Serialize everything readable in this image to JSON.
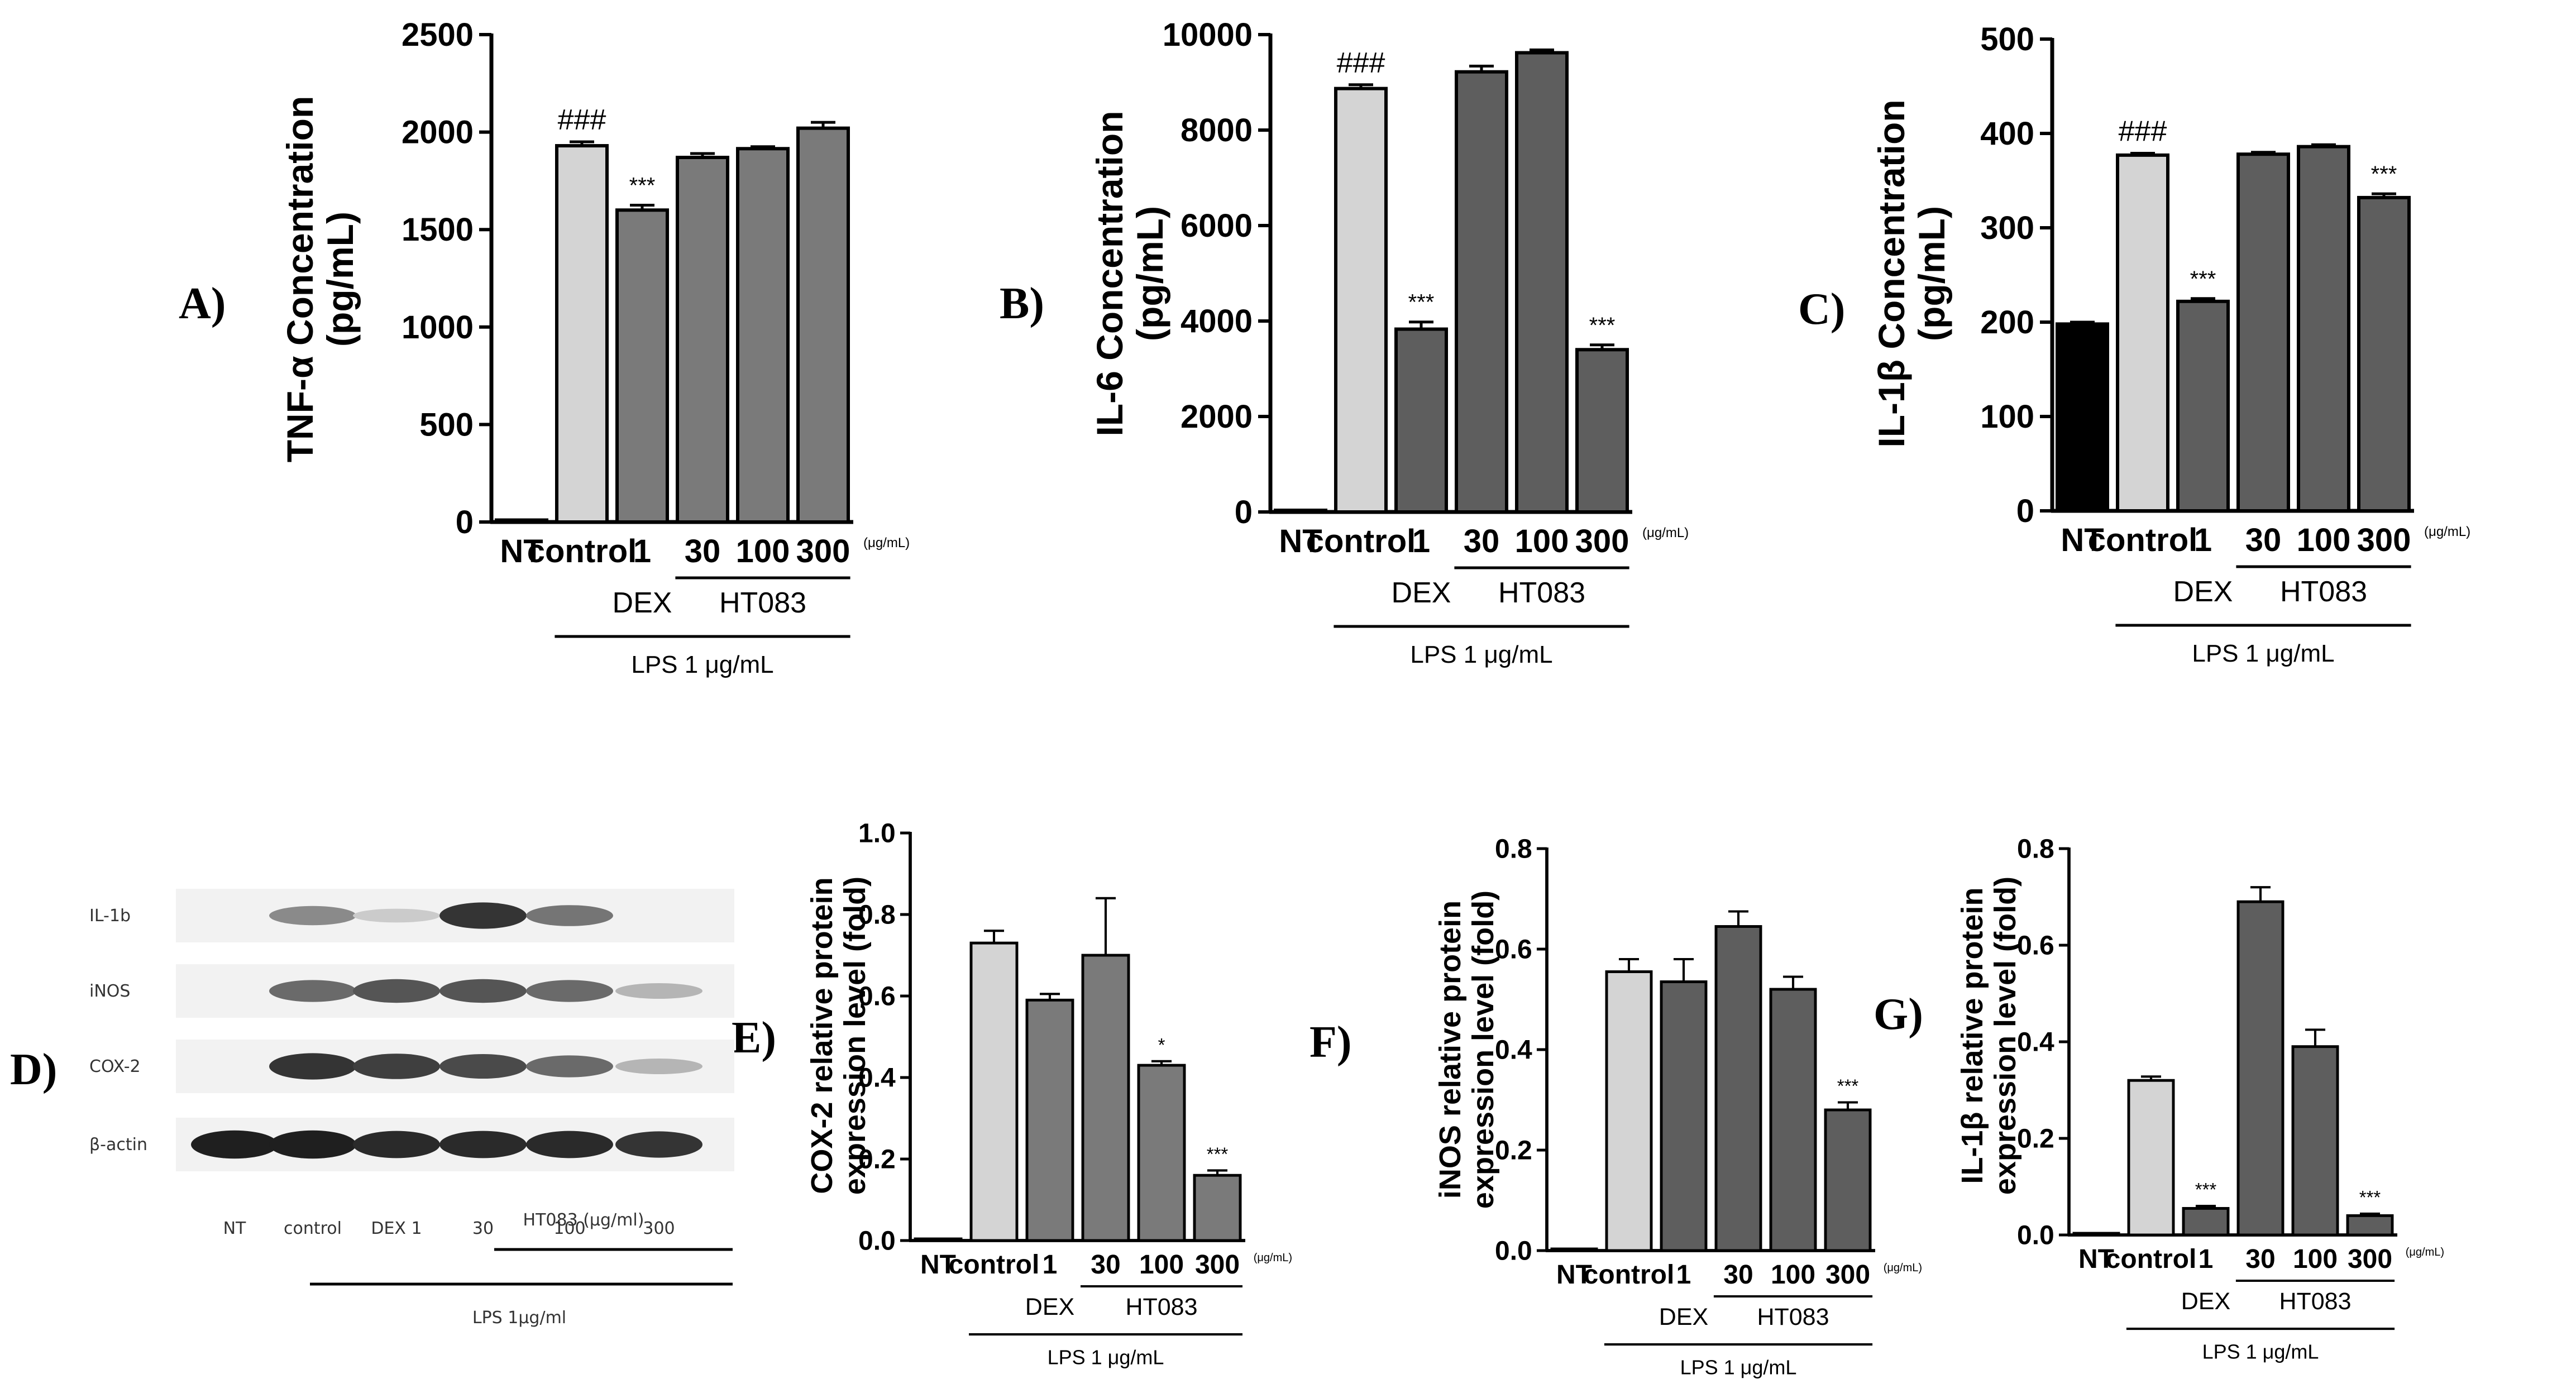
{
  "chart_data": [
    {
      "id": "A",
      "panel_label": "A)",
      "type": "bar",
      "ylabel_lines": [
        "TNF-α Concentration",
        "(pg/mL)"
      ],
      "ylim": [
        0,
        2500
      ],
      "yticks": [
        0,
        500,
        1000,
        1500,
        2000,
        2500
      ],
      "categories": [
        "NT",
        "control",
        "1",
        "30",
        "100",
        "300"
      ],
      "values": [
        10,
        1930,
        1600,
        1870,
        1915,
        2020
      ],
      "errors": [
        0,
        20,
        25,
        20,
        10,
        30
      ],
      "bar_colors": [
        "#000000",
        "#d4d4d4",
        "#7a7a7a",
        "#7a7a7a",
        "#7a7a7a",
        "#7a7a7a"
      ],
      "annotations": [
        "",
        "###",
        "***",
        "",
        "",
        ""
      ],
      "unit": "(μg/mL)",
      "groups": [
        {
          "label": "DEX",
          "from": 2,
          "to": 2
        },
        {
          "label": "HT083",
          "from": 3,
          "to": 5
        }
      ],
      "outer": {
        "label": "LPS 1 μg/mL",
        "from": 1,
        "to": 5
      }
    },
    {
      "id": "B",
      "panel_label": "B)",
      "type": "bar",
      "ylabel_lines": [
        "IL-6 Concentration",
        "(pg/mL)"
      ],
      "ylim": [
        0,
        10000
      ],
      "yticks": [
        0,
        2000,
        4000,
        6000,
        8000,
        10000
      ],
      "categories": [
        "NT",
        "control",
        "1",
        "30",
        "100",
        "300"
      ],
      "values": [
        0,
        8870,
        3830,
        9220,
        9620,
        3400
      ],
      "errors": [
        0,
        80,
        150,
        120,
        60,
        100
      ],
      "bar_colors": [
        "#000000",
        "#d4d4d4",
        "#5e5e5e",
        "#5e5e5e",
        "#5e5e5e",
        "#5e5e5e"
      ],
      "annotations": [
        "",
        "###",
        "***",
        "",
        "",
        "***"
      ],
      "unit": "(μg/mL)",
      "groups": [
        {
          "label": "DEX",
          "from": 2,
          "to": 2
        },
        {
          "label": "HT083",
          "from": 3,
          "to": 5
        }
      ],
      "outer": {
        "label": "LPS 1 μg/mL",
        "from": 1,
        "to": 5
      }
    },
    {
      "id": "C",
      "panel_label": "C)",
      "type": "bar",
      "ylabel_lines": [
        "IL-1β Concentration",
        "(pg/mL)"
      ],
      "ylim": [
        0,
        500
      ],
      "yticks": [
        0,
        100,
        200,
        300,
        400,
        500
      ],
      "categories": [
        "NT",
        "control",
        "1",
        "30",
        "100",
        "300"
      ],
      "values": [
        198,
        377,
        222,
        378,
        386,
        332
      ],
      "errors": [
        2,
        2,
        3,
        2,
        2,
        4
      ],
      "bar_colors": [
        "#000000",
        "#d4d4d4",
        "#5e5e5e",
        "#5e5e5e",
        "#5e5e5e",
        "#5e5e5e"
      ],
      "annotations": [
        "",
        "###",
        "***",
        "",
        "",
        "***"
      ],
      "unit": "(μg/mL)",
      "groups": [
        {
          "label": "DEX",
          "from": 2,
          "to": 2
        },
        {
          "label": "HT083",
          "from": 3,
          "to": 5
        }
      ],
      "outer": {
        "label": "LPS 1 μg/mL",
        "from": 1,
        "to": 5
      }
    },
    {
      "id": "E",
      "panel_label": "E)",
      "type": "bar",
      "ylabel_lines": [
        "COX-2 relative protein",
        "expression level (fold)"
      ],
      "ylim": [
        0,
        1.0
      ],
      "yticks": [
        0.0,
        0.2,
        0.4,
        0.6,
        0.8,
        1.0
      ],
      "ytick_labels": [
        "0.0",
        "0.2",
        "0.4",
        "0.6",
        "0.8",
        "1.0"
      ],
      "categories": [
        "NT",
        "control",
        "1",
        "30",
        "100",
        "300"
      ],
      "values": [
        0,
        0.73,
        0.59,
        0.7,
        0.43,
        0.16
      ],
      "errors": [
        0,
        0.03,
        0.015,
        0.14,
        0.01,
        0.012
      ],
      "bar_colors": [
        "#000000",
        "#d4d4d4",
        "#7a7a7a",
        "#7a7a7a",
        "#7a7a7a",
        "#7a7a7a"
      ],
      "annotations": [
        "",
        "",
        "",
        "",
        "*",
        "***"
      ],
      "unit": "(μg/mL)",
      "groups": [
        {
          "label": "DEX",
          "from": 2,
          "to": 2
        },
        {
          "label": "HT083",
          "from": 3,
          "to": 5
        }
      ],
      "outer": {
        "label": "LPS 1 μg/mL",
        "from": 1,
        "to": 5
      }
    },
    {
      "id": "F",
      "panel_label": "F)",
      "type": "bar",
      "ylabel_lines": [
        "iNOS relative protein",
        "expression level (fold)"
      ],
      "ylim": [
        0,
        0.8
      ],
      "yticks": [
        0.0,
        0.2,
        0.4,
        0.6,
        0.8
      ],
      "ytick_labels": [
        "0.0",
        "0.2",
        "0.4",
        "0.6",
        "0.8"
      ],
      "categories": [
        "NT",
        "control",
        "1",
        "30",
        "100",
        "300"
      ],
      "values": [
        0,
        0.555,
        0.535,
        0.645,
        0.52,
        0.28
      ],
      "errors": [
        0,
        0.025,
        0.045,
        0.03,
        0.025,
        0.015
      ],
      "bar_colors": [
        "#000000",
        "#d4d4d4",
        "#5e5e5e",
        "#5e5e5e",
        "#5e5e5e",
        "#5e5e5e"
      ],
      "annotations": [
        "",
        "",
        "",
        "",
        "",
        "***"
      ],
      "unit": "(μg/mL)",
      "groups": [
        {
          "label": "DEX",
          "from": 2,
          "to": 2
        },
        {
          "label": "HT083",
          "from": 3,
          "to": 5
        }
      ],
      "outer": {
        "label": "LPS 1 μg/mL",
        "from": 1,
        "to": 5
      }
    },
    {
      "id": "G",
      "panel_label": "G)",
      "type": "bar",
      "ylabel_lines": [
        "IL-1β relative protein",
        "expression level (fold)"
      ],
      "ylim": [
        0,
        0.8
      ],
      "yticks": [
        0.0,
        0.2,
        0.4,
        0.6,
        0.8
      ],
      "ytick_labels": [
        "0.0",
        "0.2",
        "0.4",
        "0.6",
        "0.8"
      ],
      "categories": [
        "NT",
        "control",
        "1",
        "30",
        "100",
        "300"
      ],
      "values": [
        0,
        0.32,
        0.055,
        0.69,
        0.39,
        0.04
      ],
      "errors": [
        0,
        0.008,
        0.005,
        0.03,
        0.035,
        0.004
      ],
      "bar_colors": [
        "#000000",
        "#d4d4d4",
        "#5e5e5e",
        "#5e5e5e",
        "#5e5e5e",
        "#5e5e5e"
      ],
      "annotations": [
        "",
        "",
        "***",
        "",
        "",
        "***"
      ],
      "unit": "(μg/mL)",
      "groups": [
        {
          "label": "DEX",
          "from": 2,
          "to": 2
        },
        {
          "label": "HT083",
          "from": 3,
          "to": 5
        }
      ],
      "outer": {
        "label": "LPS 1 μg/mL",
        "from": 1,
        "to": 5
      }
    }
  ],
  "blot": {
    "panel_label": "D)",
    "rows": [
      "IL-1b",
      "iNOS",
      "COX-2",
      "β-actin"
    ],
    "intensities": [
      [
        0.0,
        0.45,
        0.15,
        0.85,
        0.55,
        0.0
      ],
      [
        0.0,
        0.6,
        0.7,
        0.7,
        0.6,
        0.25
      ],
      [
        0.0,
        0.85,
        0.8,
        0.75,
        0.6,
        0.25
      ],
      [
        0.95,
        0.95,
        0.9,
        0.9,
        0.9,
        0.85
      ]
    ],
    "lanes": [
      "NT",
      "control",
      "DEX 1",
      "30",
      "100",
      "300"
    ],
    "group_label": "HT083 (μg/ml)",
    "outer_label": "LPS 1μg/ml"
  }
}
